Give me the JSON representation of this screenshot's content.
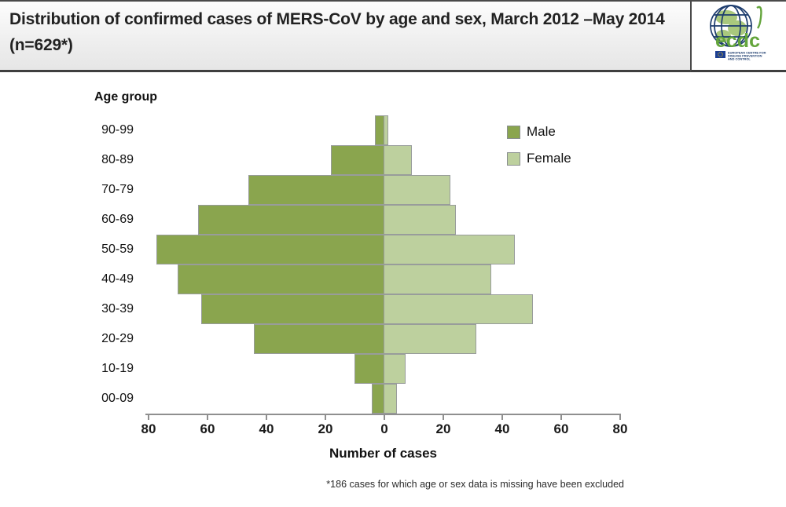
{
  "header": {
    "title": "Distribution of confirmed cases of MERS-CoV by age and sex, March 2012 –May 2014 (n=629*)",
    "logo": {
      "brand": "ecdc",
      "lines": [
        "EUROPEAN CENTRE FOR",
        "DISEASE PREVENTION",
        "AND CONTROL"
      ]
    }
  },
  "chart_data": {
    "type": "bar",
    "subtype": "population-pyramid",
    "orientation": "horizontal",
    "title": "Distribution of confirmed cases of MERS-CoV by age and sex, March 2012 –May 2014 (n=629*)",
    "ylabel": "Age group",
    "xlabel": "Number of cases",
    "categories_top_to_bottom": [
      "90-99",
      "80-89",
      "70-79",
      "60-69",
      "50-59",
      "40-49",
      "30-39",
      "20-29",
      "10-19",
      "00-09"
    ],
    "series": [
      {
        "name": "Male",
        "color": "#8AA54E",
        "values": [
          3,
          18,
          46,
          63,
          77,
          70,
          62,
          44,
          10,
          4
        ]
      },
      {
        "name": "Female",
        "color": "#BDD09E",
        "values": [
          1,
          9,
          22,
          24,
          44,
          36,
          50,
          31,
          7,
          4
        ]
      }
    ],
    "x_ticks": [
      "80",
      "60",
      "40",
      "20",
      "0",
      "20",
      "40",
      "60",
      "80"
    ],
    "axis_max_each_side": 80,
    "grid": false,
    "legend_position": "top-right",
    "footnote": "*186 cases for which age or sex data is missing have been excluded"
  },
  "colors": {
    "male": "#8AA54E",
    "female": "#BDD09E",
    "bar_border": "#989c9b",
    "axis": "#8f8f8f",
    "logo_blue": "#1d3c6e",
    "logo_green": "#64A53C"
  }
}
